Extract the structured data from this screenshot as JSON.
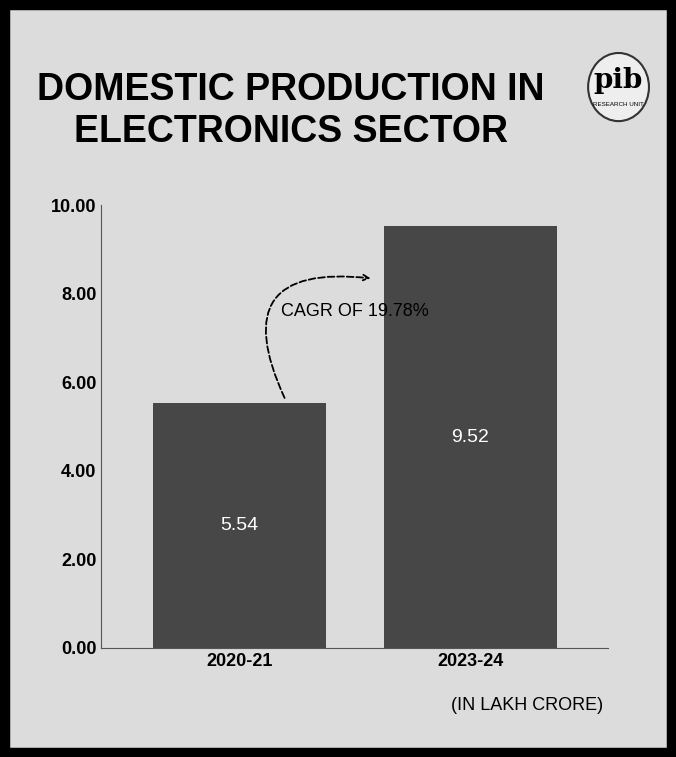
{
  "chart_data": {
    "type": "bar",
    "title": "DOMESTIC PRODUCTION IN ELECTRONICS SECTOR",
    "categories": [
      "2020-21",
      "2023-24"
    ],
    "values": [
      5.54,
      9.52
    ],
    "color": "#474747",
    "ylim": [
      0,
      10
    ],
    "yticks": [
      {
        "value": 0,
        "label": "0.00"
      },
      {
        "value": 2,
        "label": "2.00"
      },
      {
        "value": 4,
        "label": "4.00"
      },
      {
        "value": 6,
        "label": "6.00"
      },
      {
        "value": 8,
        "label": "8.00"
      },
      {
        "value": 10,
        "label": "10.00"
      }
    ],
    "data_labels": true,
    "annotations": [
      "CAGR OF 19.78%"
    ],
    "note": "(IN LAKH CRORE)",
    "logo": [
      "pib",
      "RESEARCH UNIT"
    ]
  }
}
